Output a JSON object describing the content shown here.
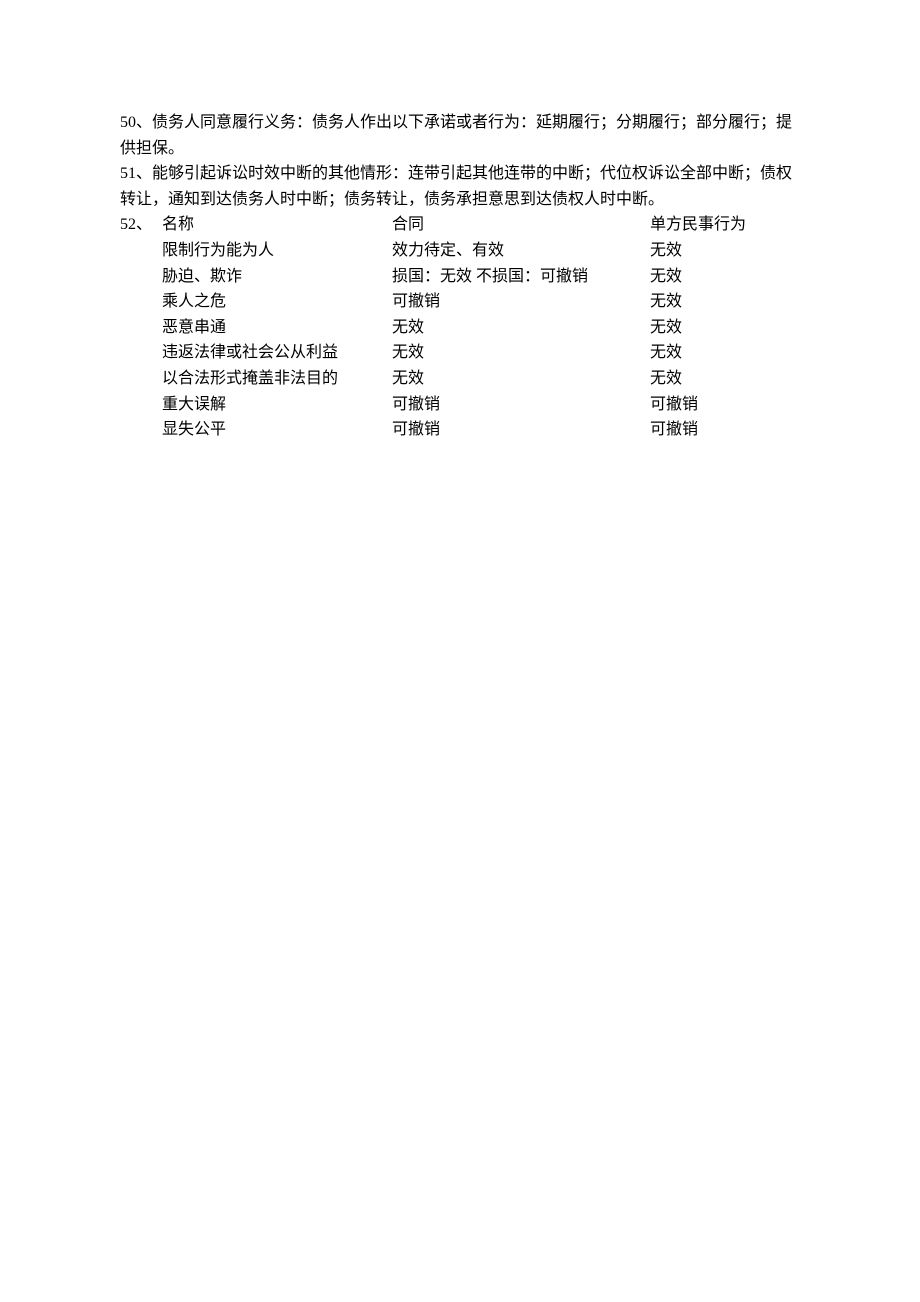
{
  "paragraphs": {
    "p50": "50、债务人同意履行义务：债务人作出以下承诺或者行为：延期履行；分期履行；部分履行；提供担保。",
    "p51": "51、能够引起诉讼时效中断的其他情形：连带引起其他连带的中断；代位权诉讼全部中断；债权转让，通知到达债务人时中断；债务转让，债务承担意思到达债权人时中断。"
  },
  "table": {
    "prefix": "52、",
    "header": {
      "name": "名称",
      "contract": "合同",
      "action": "单方民事行为"
    },
    "rows": [
      {
        "name": "限制行为能为人",
        "contract": "效力待定、有效",
        "action": "无效"
      },
      {
        "name": "胁迫、欺诈",
        "contract": "损国：无效 不损国：可撤销",
        "action": "无效"
      },
      {
        "name": "乘人之危",
        "contract": "可撤销",
        "action": "无效"
      },
      {
        "name": "恶意串通",
        "contract": "无效",
        "action": "无效"
      },
      {
        "name": "违返法律或社会公从利益",
        "contract": "无效",
        "action": "无效"
      },
      {
        "name": "以合法形式掩盖非法目的",
        "contract": "无效",
        "action": "无效"
      },
      {
        "name": "重大误解",
        "contract": "可撤销",
        "action": "可撤销"
      },
      {
        "name": "显失公平",
        "contract": "可撤销",
        "action": "可撤销"
      }
    ]
  }
}
